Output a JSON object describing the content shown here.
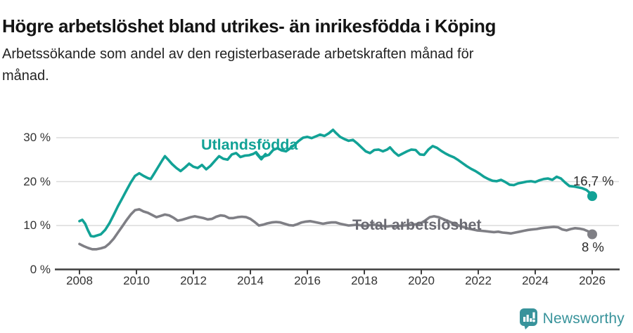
{
  "chart_data": {
    "type": "line",
    "title": "Högre arbetslöshet bland utrikes- än inrikesfödda i Köping",
    "subtitle_line1": "Arbetssökande som andel av den registerbaserade arbetskraften månad för",
    "subtitle_line2": "månad.",
    "unit": "%",
    "grid": true,
    "legend_position": "inline-labels",
    "xlim": [
      2007.1,
      2027.0
    ],
    "ylim": [
      0,
      33
    ],
    "x_ticks": [
      {
        "value": 2008,
        "label": "2008"
      },
      {
        "value": 2010,
        "label": "2010"
      },
      {
        "value": 2012,
        "label": "2012"
      },
      {
        "value": 2014,
        "label": "2014"
      },
      {
        "value": 2016,
        "label": "2016"
      },
      {
        "value": 2018,
        "label": "2018"
      },
      {
        "value": 2020,
        "label": "2020"
      },
      {
        "value": 2022,
        "label": "2022"
      },
      {
        "value": 2024,
        "label": "2024"
      },
      {
        "value": 2026,
        "label": "2026"
      }
    ],
    "y_ticks": [
      {
        "value": 0,
        "label": "0 %"
      },
      {
        "value": 10,
        "label": "10 %"
      },
      {
        "value": 20,
        "label": "20 %"
      },
      {
        "value": 30,
        "label": "30 %"
      }
    ],
    "series": [
      {
        "name": "Utlandsfödda",
        "color": "#12A296",
        "end_label": "16,7 %",
        "end_value": 16.7,
        "points": [
          [
            2008.0,
            11.0
          ],
          [
            2008.1,
            11.3
          ],
          [
            2008.2,
            10.4
          ],
          [
            2008.3,
            8.9
          ],
          [
            2008.4,
            7.6
          ],
          [
            2008.5,
            7.5
          ],
          [
            2008.6,
            7.7
          ],
          [
            2008.75,
            8.0
          ],
          [
            2008.9,
            9.0
          ],
          [
            2009.05,
            10.5
          ],
          [
            2009.2,
            12.4
          ],
          [
            2009.35,
            14.4
          ],
          [
            2009.5,
            16.2
          ],
          [
            2009.65,
            18.0
          ],
          [
            2009.8,
            19.8
          ],
          [
            2009.95,
            21.3
          ],
          [
            2010.1,
            21.9
          ],
          [
            2010.25,
            21.3
          ],
          [
            2010.4,
            20.8
          ],
          [
            2010.5,
            20.6
          ],
          [
            2010.6,
            21.6
          ],
          [
            2010.75,
            23.2
          ],
          [
            2010.9,
            24.8
          ],
          [
            2011.0,
            25.8
          ],
          [
            2011.1,
            25.1
          ],
          [
            2011.25,
            24.0
          ],
          [
            2011.4,
            23.1
          ],
          [
            2011.55,
            22.4
          ],
          [
            2011.7,
            23.2
          ],
          [
            2011.85,
            24.1
          ],
          [
            2012.0,
            23.4
          ],
          [
            2012.15,
            23.1
          ],
          [
            2012.3,
            23.8
          ],
          [
            2012.45,
            22.8
          ],
          [
            2012.6,
            23.6
          ],
          [
            2012.75,
            24.7
          ],
          [
            2012.9,
            25.8
          ],
          [
            2013.05,
            25.2
          ],
          [
            2013.2,
            25.0
          ],
          [
            2013.35,
            26.2
          ],
          [
            2013.5,
            26.5
          ],
          [
            2013.65,
            25.6
          ],
          [
            2013.8,
            25.9
          ],
          [
            2013.95,
            26.0
          ],
          [
            2014.1,
            26.3
          ],
          [
            2014.2,
            26.7
          ],
          [
            2014.35,
            25.5
          ],
          [
            2014.5,
            25.8
          ],
          [
            2014.65,
            26.1
          ],
          [
            2014.8,
            27.2
          ],
          [
            2014.95,
            27.6
          ],
          [
            2015.1,
            27.1
          ],
          [
            2015.25,
            26.9
          ],
          [
            2015.4,
            27.6
          ],
          [
            2015.55,
            28.4
          ],
          [
            2015.7,
            29.3
          ],
          [
            2015.85,
            30.0
          ],
          [
            2016.0,
            30.2
          ],
          [
            2016.15,
            29.9
          ],
          [
            2016.3,
            30.3
          ],
          [
            2016.45,
            30.7
          ],
          [
            2016.6,
            30.4
          ],
          [
            2016.75,
            31.0
          ],
          [
            2016.9,
            31.8
          ],
          [
            2017.0,
            31.1
          ],
          [
            2017.15,
            30.2
          ],
          [
            2017.3,
            29.7
          ],
          [
            2017.45,
            29.3
          ],
          [
            2017.6,
            29.5
          ],
          [
            2017.75,
            28.7
          ],
          [
            2017.9,
            27.8
          ],
          [
            2018.05,
            26.9
          ],
          [
            2018.2,
            26.5
          ],
          [
            2018.35,
            27.2
          ],
          [
            2018.5,
            27.3
          ],
          [
            2018.65,
            26.9
          ],
          [
            2018.8,
            27.3
          ],
          [
            2018.9,
            27.8
          ],
          [
            2019.05,
            26.7
          ],
          [
            2019.2,
            25.9
          ],
          [
            2019.35,
            26.4
          ],
          [
            2019.5,
            26.9
          ],
          [
            2019.65,
            27.3
          ],
          [
            2019.8,
            27.2
          ],
          [
            2019.95,
            26.2
          ],
          [
            2020.1,
            26.1
          ],
          [
            2020.25,
            27.3
          ],
          [
            2020.4,
            28.1
          ],
          [
            2020.55,
            27.7
          ],
          [
            2020.7,
            27.0
          ],
          [
            2020.85,
            26.4
          ],
          [
            2021.0,
            25.9
          ],
          [
            2021.15,
            25.5
          ],
          [
            2021.3,
            24.9
          ],
          [
            2021.45,
            24.2
          ],
          [
            2021.6,
            23.5
          ],
          [
            2021.75,
            22.9
          ],
          [
            2021.9,
            22.4
          ],
          [
            2022.05,
            21.8
          ],
          [
            2022.2,
            21.1
          ],
          [
            2022.35,
            20.6
          ],
          [
            2022.5,
            20.2
          ],
          [
            2022.65,
            20.1
          ],
          [
            2022.8,
            20.4
          ],
          [
            2022.95,
            19.9
          ],
          [
            2023.1,
            19.3
          ],
          [
            2023.25,
            19.2
          ],
          [
            2023.4,
            19.6
          ],
          [
            2023.55,
            19.8
          ],
          [
            2023.7,
            20.0
          ],
          [
            2023.85,
            20.1
          ],
          [
            2024.0,
            19.9
          ],
          [
            2024.15,
            20.3
          ],
          [
            2024.3,
            20.6
          ],
          [
            2024.45,
            20.7
          ],
          [
            2024.6,
            20.4
          ],
          [
            2024.75,
            21.1
          ],
          [
            2024.9,
            20.7
          ],
          [
            2025.05,
            19.8
          ],
          [
            2025.2,
            19.0
          ],
          [
            2025.35,
            18.9
          ],
          [
            2025.5,
            18.7
          ],
          [
            2025.65,
            18.5
          ],
          [
            2025.8,
            18.1
          ],
          [
            2025.9,
            17.5
          ],
          [
            2026.0,
            16.7
          ]
        ]
      },
      {
        "name": "Total arbetslöshet",
        "color": "#7F7F85",
        "end_label": "8 %",
        "end_value": 8,
        "points": [
          [
            2008.0,
            5.8
          ],
          [
            2008.15,
            5.3
          ],
          [
            2008.3,
            4.9
          ],
          [
            2008.45,
            4.6
          ],
          [
            2008.6,
            4.6
          ],
          [
            2008.75,
            4.8
          ],
          [
            2008.9,
            5.1
          ],
          [
            2009.05,
            5.9
          ],
          [
            2009.2,
            7.0
          ],
          [
            2009.35,
            8.4
          ],
          [
            2009.5,
            9.8
          ],
          [
            2009.65,
            11.2
          ],
          [
            2009.8,
            12.5
          ],
          [
            2009.95,
            13.5
          ],
          [
            2010.1,
            13.7
          ],
          [
            2010.25,
            13.2
          ],
          [
            2010.4,
            12.9
          ],
          [
            2010.55,
            12.4
          ],
          [
            2010.7,
            11.9
          ],
          [
            2010.85,
            12.2
          ],
          [
            2011.0,
            12.5
          ],
          [
            2011.15,
            12.3
          ],
          [
            2011.3,
            11.8
          ],
          [
            2011.45,
            11.1
          ],
          [
            2011.6,
            11.3
          ],
          [
            2011.75,
            11.6
          ],
          [
            2011.9,
            11.9
          ],
          [
            2012.05,
            12.1
          ],
          [
            2012.2,
            11.9
          ],
          [
            2012.35,
            11.7
          ],
          [
            2012.5,
            11.4
          ],
          [
            2012.65,
            11.5
          ],
          [
            2012.8,
            12.0
          ],
          [
            2012.95,
            12.3
          ],
          [
            2013.1,
            12.2
          ],
          [
            2013.25,
            11.7
          ],
          [
            2013.4,
            11.7
          ],
          [
            2013.55,
            11.9
          ],
          [
            2013.7,
            12.0
          ],
          [
            2013.85,
            11.9
          ],
          [
            2014.0,
            11.5
          ],
          [
            2014.15,
            10.8
          ],
          [
            2014.3,
            10.0
          ],
          [
            2014.45,
            10.2
          ],
          [
            2014.6,
            10.5
          ],
          [
            2014.75,
            10.7
          ],
          [
            2014.9,
            10.8
          ],
          [
            2015.05,
            10.7
          ],
          [
            2015.2,
            10.4
          ],
          [
            2015.35,
            10.1
          ],
          [
            2015.5,
            10.0
          ],
          [
            2015.65,
            10.3
          ],
          [
            2015.8,
            10.7
          ],
          [
            2015.95,
            10.9
          ],
          [
            2016.1,
            11.0
          ],
          [
            2016.25,
            10.8
          ],
          [
            2016.4,
            10.6
          ],
          [
            2016.55,
            10.4
          ],
          [
            2016.7,
            10.6
          ],
          [
            2016.85,
            10.7
          ],
          [
            2017.0,
            10.7
          ],
          [
            2017.15,
            10.4
          ],
          [
            2017.3,
            10.2
          ],
          [
            2017.45,
            10.0
          ],
          [
            2017.6,
            10.1
          ],
          [
            2017.75,
            10.2
          ],
          [
            2017.9,
            10.0
          ],
          [
            2018.05,
            9.9
          ],
          [
            2018.2,
            10.1
          ],
          [
            2018.35,
            10.2
          ],
          [
            2018.5,
            10.0
          ],
          [
            2018.65,
            9.9
          ],
          [
            2018.8,
            9.8
          ],
          [
            2018.95,
            9.9
          ],
          [
            2019.1,
            9.8
          ],
          [
            2019.25,
            9.9
          ],
          [
            2019.4,
            10.0
          ],
          [
            2019.55,
            10.1
          ],
          [
            2019.7,
            10.2
          ],
          [
            2019.85,
            10.3
          ],
          [
            2020.0,
            10.6
          ],
          [
            2020.15,
            11.2
          ],
          [
            2020.3,
            11.9
          ],
          [
            2020.45,
            12.1
          ],
          [
            2020.6,
            11.9
          ],
          [
            2020.75,
            11.5
          ],
          [
            2020.9,
            11.1
          ],
          [
            2021.05,
            10.7
          ],
          [
            2021.2,
            10.3
          ],
          [
            2021.35,
            9.9
          ],
          [
            2021.5,
            9.6
          ],
          [
            2021.65,
            9.3
          ],
          [
            2021.8,
            9.1
          ],
          [
            2021.95,
            8.9
          ],
          [
            2022.1,
            8.8
          ],
          [
            2022.25,
            8.7
          ],
          [
            2022.4,
            8.6
          ],
          [
            2022.55,
            8.5
          ],
          [
            2022.7,
            8.6
          ],
          [
            2022.85,
            8.4
          ],
          [
            2023.0,
            8.3
          ],
          [
            2023.15,
            8.2
          ],
          [
            2023.3,
            8.4
          ],
          [
            2023.45,
            8.6
          ],
          [
            2023.6,
            8.8
          ],
          [
            2023.75,
            9.0
          ],
          [
            2023.9,
            9.1
          ],
          [
            2024.05,
            9.2
          ],
          [
            2024.2,
            9.4
          ],
          [
            2024.35,
            9.5
          ],
          [
            2024.5,
            9.6
          ],
          [
            2024.65,
            9.7
          ],
          [
            2024.8,
            9.6
          ],
          [
            2024.95,
            9.1
          ],
          [
            2025.1,
            8.9
          ],
          [
            2025.25,
            9.2
          ],
          [
            2025.4,
            9.4
          ],
          [
            2025.55,
            9.3
          ],
          [
            2025.7,
            9.1
          ],
          [
            2025.85,
            8.7
          ],
          [
            2026.0,
            8.0
          ]
        ]
      }
    ],
    "colors": {
      "grid": "#DCDCDC",
      "axis": "#3F3F3F",
      "tick_text": "#333333",
      "series1_label": "#12A296",
      "series2_label": "#6A6A72",
      "end_label_text": "#2B2B2B"
    }
  },
  "footer": {
    "brand": "Newsworthy",
    "brand_color": "#38939B",
    "logo_icon": "speech-bubble-bar-chart-icon"
  }
}
